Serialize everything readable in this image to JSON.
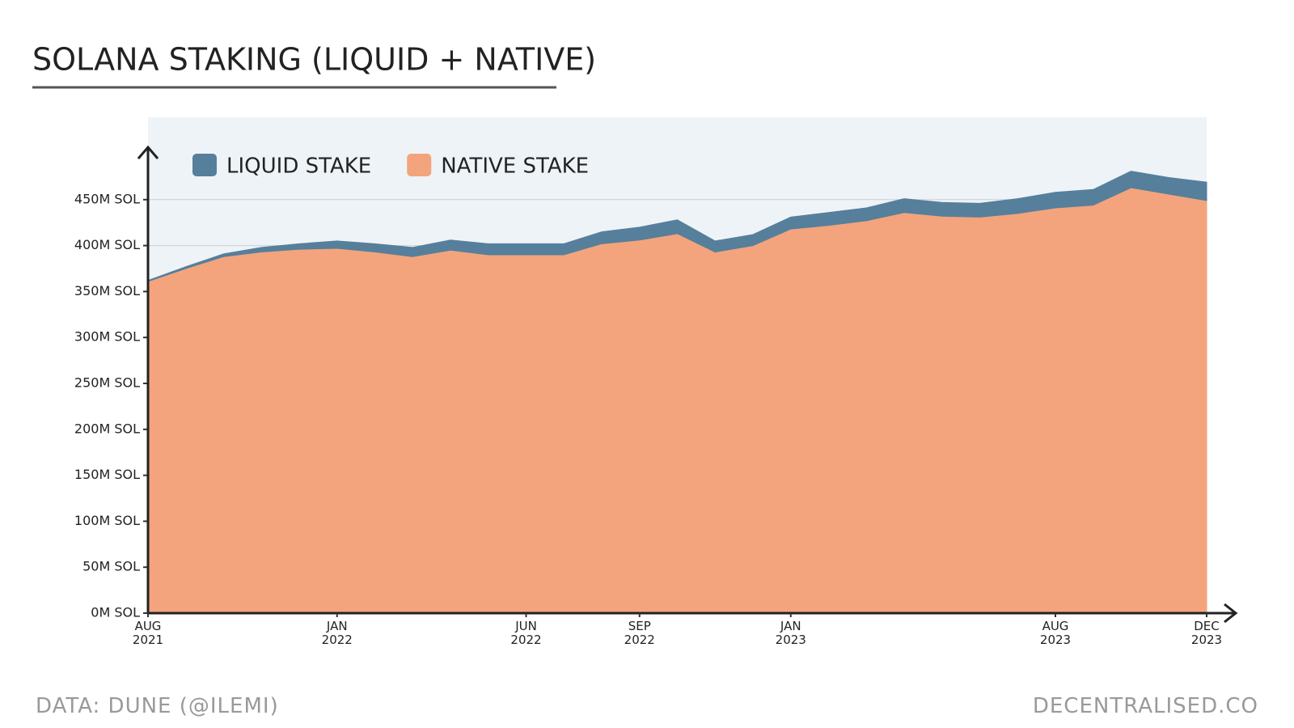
{
  "chart_data": {
    "type": "stacked_area",
    "title": "SOLANA STAKING (LIQUID + NATIVE)",
    "source": "DATA: DUNE (@ILEMI)",
    "credit": "DECENTRALISED.CO",
    "x": [
      "2021-08",
      "2021-09",
      "2021-10",
      "2021-11",
      "2021-12",
      "2022-01",
      "2022-02",
      "2022-03",
      "2022-04",
      "2022-05",
      "2022-06",
      "2022-07",
      "2022-08",
      "2022-09",
      "2022-10",
      "2022-11",
      "2022-12",
      "2023-01",
      "2023-02",
      "2023-03",
      "2023-04",
      "2023-05",
      "2023-06",
      "2023-07",
      "2023-08",
      "2023-09",
      "2023-10",
      "2023-11",
      "2023-12"
    ],
    "series": [
      {
        "name": "NATIVE STAKE",
        "color": "#f3a47c",
        "values": [
          361,
          375,
          388,
          393,
          396,
          397,
          393,
          388,
          395,
          390,
          390,
          390,
          402,
          406,
          413,
          393,
          400,
          418,
          422,
          427,
          436,
          432,
          431,
          435,
          441,
          444,
          463,
          456,
          449
        ]
      },
      {
        "name": "LIQUID STAKE",
        "color": "#567f9b",
        "values": [
          1,
          2,
          3,
          5,
          6,
          8,
          9,
          10,
          11,
          12,
          12,
          12,
          13,
          14,
          15,
          12,
          12,
          13,
          14,
          14,
          15,
          15,
          15,
          16,
          17,
          17,
          18,
          18,
          20
        ]
      }
    ],
    "legend_order": [
      1,
      0
    ],
    "ylim": [
      0,
      500
    ],
    "yticks": [
      {
        "value": 0,
        "label": "0M SOL"
      },
      {
        "value": 50,
        "label": "50M SOL"
      },
      {
        "value": 100,
        "label": "100M SOL"
      },
      {
        "value": 150,
        "label": "150M SOL"
      },
      {
        "value": 200,
        "label": "200M SOL"
      },
      {
        "value": 250,
        "label": "250M SOL"
      },
      {
        "value": 300,
        "label": "300M SOL"
      },
      {
        "value": 350,
        "label": "350M SOL"
      },
      {
        "value": 400,
        "label": "400M SOL"
      },
      {
        "value": 450,
        "label": "450M SOL"
      }
    ],
    "xticks": [
      {
        "value": "2021-08",
        "label": "AUG\n2021"
      },
      {
        "value": "2022-01",
        "label": "JAN\n2022"
      },
      {
        "value": "2022-06",
        "label": "JUN\n2022"
      },
      {
        "value": "2022-09",
        "label": "SEP\n2022"
      },
      {
        "value": "2023-01",
        "label": "JAN\n2023"
      },
      {
        "value": "2023-08",
        "label": "AUG\n2023"
      },
      {
        "value": "2023-12",
        "label": "DEC\n2023"
      }
    ],
    "grid": true
  }
}
